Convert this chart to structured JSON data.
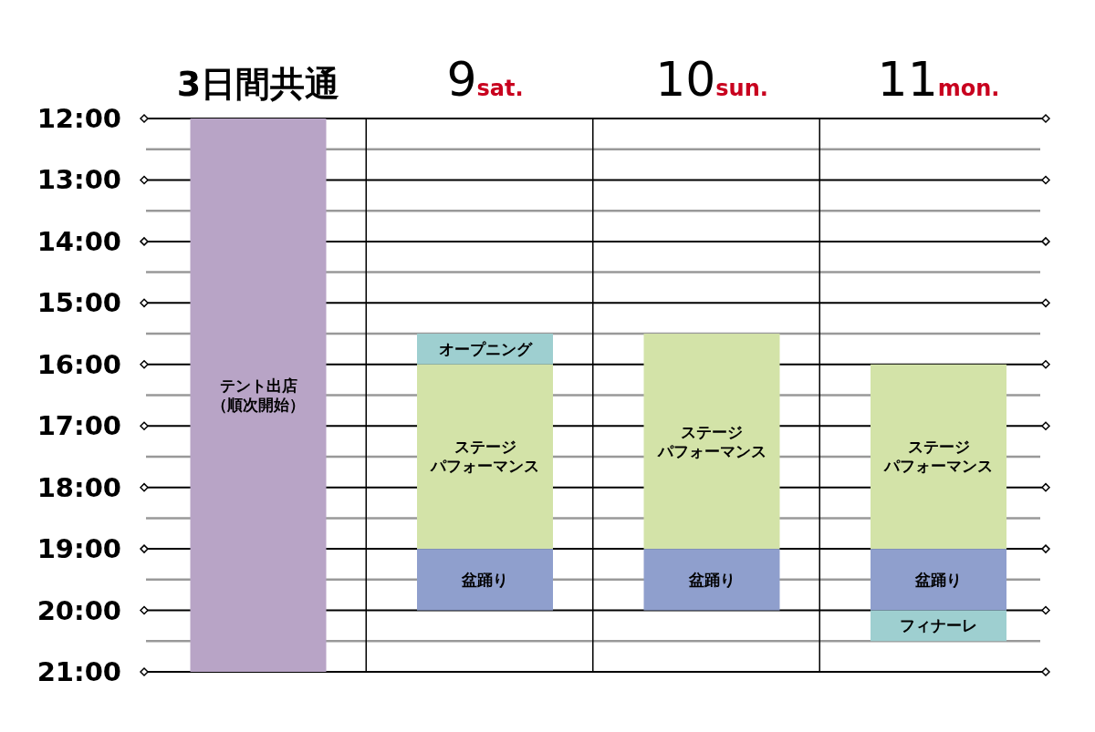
{
  "chart_data": {
    "type": "bar",
    "categories": [
      "3日間共通",
      "9sat.",
      "10sun.",
      "11mon."
    ],
    "series": [
      {
        "name": "テント出店（順次開始）",
        "color": "#b8a4c6",
        "base": [
          12,
          null,
          null,
          null
        ],
        "values": [
          9,
          null,
          null,
          null
        ]
      },
      {
        "name": "オープニング",
        "color": "#9ecfd0",
        "base": [
          null,
          15.5,
          null,
          null
        ],
        "values": [
          null,
          0.5,
          null,
          null
        ]
      },
      {
        "name": "ステージパフォーマンス",
        "color": "#d3e3a8",
        "base": [
          null,
          16,
          15.5,
          16
        ],
        "values": [
          null,
          3,
          3.5,
          3
        ]
      },
      {
        "name": "盆踊り",
        "color": "#8f9fcd",
        "base": [
          null,
          19,
          19,
          19
        ],
        "values": [
          null,
          1,
          1,
          1
        ]
      },
      {
        "name": "フィナーレ",
        "color": "#9ecfd0",
        "base": [
          null,
          null,
          null,
          20
        ],
        "values": [
          null,
          null,
          null,
          0.5
        ]
      }
    ],
    "ylim": [
      21,
      12
    ],
    "yticks": [
      {
        "value": 12,
        "label": "12:00"
      },
      {
        "value": 12.5,
        "label": null
      },
      {
        "value": 13,
        "label": "13:00"
      },
      {
        "value": 13.5,
        "label": null
      },
      {
        "value": 14,
        "label": "14:00"
      },
      {
        "value": 14.5,
        "label": null
      },
      {
        "value": 15,
        "label": "15:00"
      },
      {
        "value": 15.5,
        "label": null
      },
      {
        "value": 16,
        "label": "16:00"
      },
      {
        "value": 16.5,
        "label": null
      },
      {
        "value": 17,
        "label": "17:00"
      },
      {
        "value": 17.5,
        "label": null
      },
      {
        "value": 18,
        "label": "18:00"
      },
      {
        "value": 18.5,
        "label": null
      },
      {
        "value": 19,
        "label": "19:00"
      },
      {
        "value": 19.5,
        "label": null
      },
      {
        "value": 20,
        "label": "20:00"
      },
      {
        "value": 20.5,
        "label": null
      },
      {
        "value": 21,
        "label": "21:00"
      }
    ],
    "grid": "y"
  }
}
